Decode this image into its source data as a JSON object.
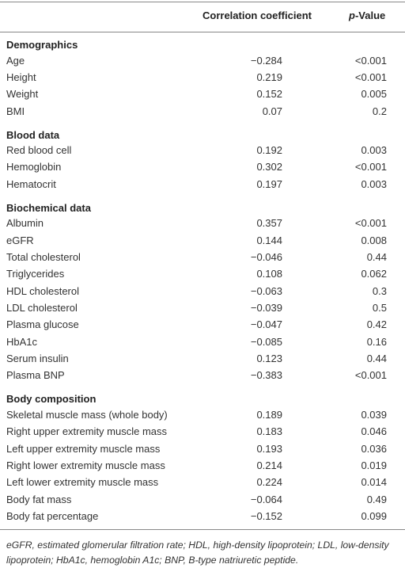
{
  "table": {
    "header": [
      "Correlation coefficient",
      "p-Value"
    ],
    "sections": [
      {
        "title": "Demographics",
        "rows": [
          [
            "Age",
            "−0.284",
            "<0.001"
          ],
          [
            "Height",
            "0.219",
            "<0.001"
          ],
          [
            "Weight",
            "0.152",
            "0.005"
          ],
          [
            "BMI",
            "0.07",
            "0.2"
          ]
        ]
      },
      {
        "title": "Blood data",
        "rows": [
          [
            "Red blood cell",
            "0.192",
            "0.003"
          ],
          [
            "Hemoglobin",
            "0.302",
            "<0.001"
          ],
          [
            "Hematocrit",
            "0.197",
            "0.003"
          ]
        ]
      },
      {
        "title": "Biochemical data",
        "rows": [
          [
            "Albumin",
            "0.357",
            "<0.001"
          ],
          [
            "eGFR",
            "0.144",
            "0.008"
          ],
          [
            "Total cholesterol",
            "−0.046",
            "0.44"
          ],
          [
            "Triglycerides",
            "0.108",
            "0.062"
          ],
          [
            "HDL cholesterol",
            "−0.063",
            "0.3"
          ],
          [
            "LDL cholesterol",
            "−0.039",
            "0.5"
          ],
          [
            "Plasma glucose",
            "−0.047",
            "0.42"
          ],
          [
            "HbA1c",
            "−0.085",
            "0.16"
          ],
          [
            "Serum insulin",
            "0.123",
            "0.44"
          ],
          [
            "Plasma BNP",
            "−0.383",
            "<0.001"
          ]
        ]
      },
      {
        "title": "Body composition",
        "rows": [
          [
            "Skeletal muscle mass (whole body)",
            "0.189",
            "0.039"
          ],
          [
            "Right upper extremity muscle mass",
            "0.183",
            "0.046"
          ],
          [
            "Left upper extremity muscle mass",
            "0.193",
            "0.036"
          ],
          [
            "Right lower extremity muscle mass",
            "0.214",
            "0.019"
          ],
          [
            "Left lower extremity muscle mass",
            "0.224",
            "0.014"
          ],
          [
            "Body fat mass",
            "−0.064",
            "0.49"
          ],
          [
            "Body fat percentage",
            "−0.152",
            "0.099"
          ]
        ]
      }
    ]
  },
  "footnote": "eGFR, estimated glomerular filtration rate; HDL, high-density lipoprotein; LDL, low-density lipoprotein; HbA1c, hemoglobin A1c; BNP, B-type natriuretic peptide."
}
